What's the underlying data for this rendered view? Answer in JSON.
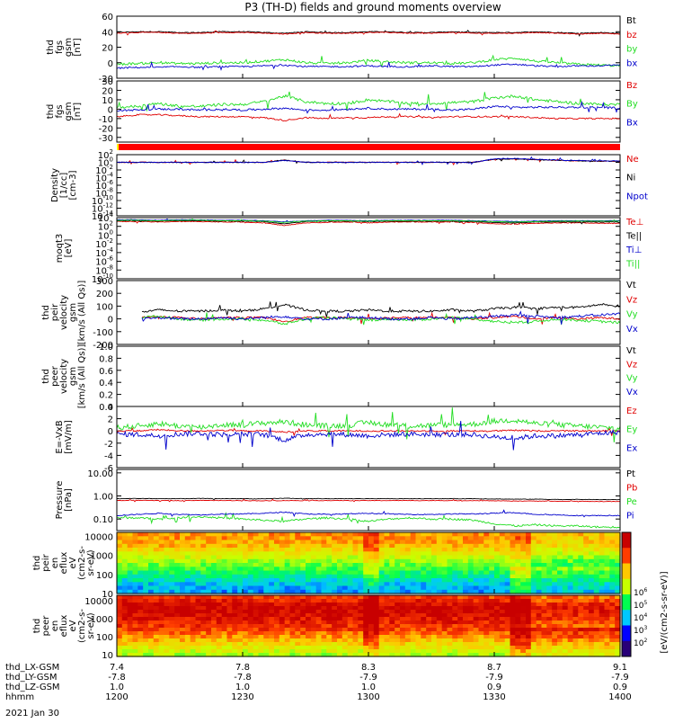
{
  "page": {
    "title": "P3 (TH-D) fields and ground moments overview",
    "date_label": "2021 Jan 30"
  },
  "colors": {
    "black": "#000000",
    "red": "#e00000",
    "green": "#22dd22",
    "blue": "#0000cc",
    "state_bar": "#ff0000",
    "state_bar_start": "#ffff00"
  },
  "x_axis": {
    "range_hhmm": [
      "12:00",
      "14:00"
    ],
    "ticks_hhmm": [
      "12:00",
      "12:30",
      "13:00",
      "13:30",
      "14:00"
    ],
    "row_labels": [
      "thd_LX-GSM",
      "thd_LY-GSM",
      "thd_LZ-GSM",
      "hhmm"
    ],
    "rows": [
      [
        "7.4",
        "7.8",
        "8.3",
        "8.7",
        "9.1"
      ],
      [
        "-7.8",
        "-7.8",
        "-7.9",
        "-7.9",
        "-7.9"
      ],
      [
        "1.0",
        "1.0",
        "1.0",
        "0.9",
        "0.9"
      ],
      [
        "1200",
        "1230",
        "1300",
        "1330",
        "1400"
      ]
    ]
  },
  "colorbar": {
    "ticks": [
      "10^2",
      "10^3",
      "10^4",
      "10^5",
      "10^6"
    ],
    "label": "[eV/(cm2-s-sr-eV)]"
  },
  "chart_data": [
    {
      "id": "fgs-gsm-total",
      "type": "line",
      "ylabel": [
        "thd",
        "fgs",
        "gsm",
        "[nT]"
      ],
      "ylim": [
        -20,
        60
      ],
      "ticks": [
        "-20",
        "0",
        "20",
        "40",
        "60"
      ],
      "log": false,
      "series": [
        {
          "name": "Bt",
          "color": "#000000",
          "base": [
            39,
            40,
            40,
            39,
            39,
            40,
            40,
            39,
            38,
            40,
            39,
            39,
            40,
            40,
            39,
            39,
            40,
            39,
            39,
            39,
            40,
            39,
            38,
            39,
            38
          ],
          "jit": 1
        },
        {
          "name": "bz",
          "color": "#e00000",
          "base": [
            38,
            39,
            39,
            38,
            38,
            39,
            39,
            38,
            37,
            39,
            38,
            38,
            39,
            39,
            38,
            38,
            39,
            38,
            38,
            38,
            39,
            38,
            37,
            38,
            37
          ],
          "jit": 1
        },
        {
          "name": "by",
          "color": "#22dd22",
          "base": [
            -2,
            -1,
            0,
            -1,
            -1,
            0,
            0,
            2,
            4,
            0,
            -1,
            0,
            3,
            1,
            0,
            0,
            -1,
            0,
            4,
            6,
            2,
            0,
            -2,
            -3,
            -4
          ],
          "jit": 3
        },
        {
          "name": "bx",
          "color": "#0000cc",
          "base": [
            -7,
            -6,
            -6,
            -5,
            -6,
            -5,
            -5,
            -4,
            -3,
            -5,
            -5,
            -5,
            -4,
            -5,
            -5,
            -4,
            -5,
            -5,
            -3,
            -2,
            -4,
            -5,
            -4,
            -4,
            -3
          ],
          "jit": 2
        }
      ]
    },
    {
      "id": "fgs-gsm-components",
      "type": "line",
      "ylabel": [
        "thd",
        "fgs",
        "gsm",
        "[nT]"
      ],
      "ylim": [
        -35,
        30
      ],
      "ticks": [
        "-30",
        "-20",
        "-10",
        "0",
        "10",
        "20",
        "30"
      ],
      "log": false,
      "series": [
        {
          "name": "Bz",
          "color": "#e00000",
          "base": [
            -8,
            -6,
            -6,
            -7,
            -8,
            -8,
            -8,
            -9,
            -12,
            -9,
            -10,
            -9,
            -9,
            -8,
            -8,
            -9,
            -8,
            -8,
            -8,
            -8,
            -9,
            -10,
            -10,
            -10,
            -10
          ],
          "jit": 1.5
        },
        {
          "name": "By",
          "color": "#22dd22",
          "base": [
            2,
            3,
            6,
            3,
            3,
            5,
            5,
            8,
            14,
            8,
            6,
            6,
            10,
            8,
            6,
            6,
            7,
            8,
            12,
            14,
            10,
            8,
            6,
            5,
            5
          ],
          "jit": 3
        },
        {
          "name": "Bx",
          "color": "#0000cc",
          "base": [
            -1,
            -1,
            0,
            0,
            -1,
            0,
            -1,
            0,
            1,
            -1,
            -1,
            0,
            1,
            0,
            0,
            0,
            -1,
            0,
            3,
            2,
            2,
            2,
            2,
            2,
            1
          ],
          "jit": 2
        }
      ]
    },
    {
      "id": "density",
      "type": "line",
      "ylabel": [
        "Density",
        "[1/cc]",
        "[cm-3]"
      ],
      "ylim": [
        -14,
        2
      ],
      "ticks": [
        "10^2",
        "10^0",
        "10^-2",
        "10^-4",
        "10^-6",
        "10^-8",
        "10^-10",
        "10^-12",
        "10^-14"
      ],
      "log": true,
      "series": [
        {
          "name": "Ne",
          "color": "#e00000",
          "base": [
            0,
            0,
            0,
            0,
            0,
            0,
            0,
            0,
            0.6,
            0,
            0,
            0,
            0,
            0,
            0,
            0,
            0,
            0,
            0.8,
            0.9,
            0.7,
            0.5,
            0.4,
            0.3,
            0.3
          ],
          "jit": 0.2
        },
        {
          "name": "Ni",
          "color": "#000000",
          "base": [
            0,
            0,
            0,
            0,
            0,
            0,
            0,
            0,
            0.6,
            0,
            0,
            0,
            0,
            0,
            0,
            0,
            0,
            0,
            0.8,
            0.9,
            0.7,
            0.5,
            0.4,
            0.3,
            0.3
          ],
          "jit": 0.2
        },
        {
          "name": "Npot",
          "color": "#0000cc",
          "base": [
            0,
            0,
            0,
            0,
            0,
            0,
            0,
            0,
            0.5,
            0,
            0,
            0,
            0,
            0,
            0,
            0,
            0,
            0,
            0.9,
            1,
            0.8,
            0.6,
            0.5,
            0.4,
            0.4
          ],
          "jit": 0.2
        }
      ]
    },
    {
      "id": "temperature",
      "type": "line",
      "ylabel": [
        "moqt3",
        "[eV]"
      ],
      "ylim": [
        -10,
        4
      ],
      "ticks": [
        "10^4",
        "10^2",
        "10^0",
        "10^-2",
        "10^-4",
        "10^-6",
        "10^-8",
        "10^-10"
      ],
      "log": true,
      "series": [
        {
          "name": "Te⊥",
          "color": "#e00000",
          "base": [
            3.1,
            3.1,
            3.0,
            3.1,
            3.1,
            3.0,
            3.0,
            2.8,
            2.2,
            2.8,
            2.9,
            3.0,
            2.8,
            3.0,
            3.0,
            3.0,
            3.0,
            2.9,
            2.6,
            2.5,
            2.7,
            2.8,
            2.8,
            2.7,
            2.7
          ],
          "jit": 0.15
        },
        {
          "name": "Te||",
          "color": "#000000",
          "base": [
            3.3,
            3.3,
            3.2,
            3.3,
            3.3,
            3.2,
            3.2,
            3.1,
            2.6,
            3.1,
            3.2,
            3.2,
            3.1,
            3.2,
            3.2,
            3.2,
            3.2,
            3.1,
            2.9,
            2.8,
            3.0,
            3.0,
            3.0,
            3.0,
            3.0
          ],
          "jit": 0.12
        },
        {
          "name": "Ti⊥",
          "color": "#0000cc",
          "base": [
            3.5,
            3.5,
            3.4,
            3.5,
            3.5,
            3.4,
            3.4,
            3.3,
            3.0,
            3.3,
            3.4,
            3.4,
            3.3,
            3.4,
            3.4,
            3.4,
            3.4,
            3.3,
            3.2,
            3.1,
            3.2,
            3.3,
            3.3,
            3.3,
            3.3
          ],
          "jit": 0.1
        },
        {
          "name": "Ti||",
          "color": "#22dd22",
          "base": [
            3.4,
            3.4,
            3.3,
            3.4,
            3.4,
            3.3,
            3.3,
            3.2,
            2.9,
            3.2,
            3.3,
            3.3,
            3.2,
            3.3,
            3.3,
            3.3,
            3.3,
            3.2,
            3.1,
            3.0,
            3.1,
            3.2,
            3.2,
            3.2,
            3.2
          ],
          "jit": 0.1
        }
      ]
    },
    {
      "id": "peir-velocity",
      "type": "line",
      "ylabel": [
        "thd",
        "peir",
        "velocity",
        "gsm",
        "[km/s (All Qs)]"
      ],
      "ylim": [
        -200,
        300
      ],
      "ticks": [
        "-200",
        "-100",
        "0",
        "100",
        "200",
        "300"
      ],
      "log": false,
      "start_frac": 0.05,
      "series": [
        {
          "name": "Vt",
          "color": "#000000",
          "base": [
            40,
            50,
            70,
            60,
            60,
            70,
            60,
            80,
            110,
            70,
            60,
            60,
            70,
            60,
            60,
            60,
            70,
            60,
            80,
            90,
            80,
            90,
            90,
            110,
            100
          ],
          "jit": 18
        },
        {
          "name": "Vz",
          "color": "#e00000",
          "base": [
            10,
            10,
            20,
            10,
            0,
            10,
            10,
            10,
            -20,
            10,
            10,
            10,
            0,
            10,
            10,
            10,
            10,
            0,
            10,
            20,
            0,
            10,
            0,
            10,
            0
          ],
          "jit": 15
        },
        {
          "name": "Vy",
          "color": "#22dd22",
          "base": [
            0,
            10,
            20,
            0,
            -10,
            0,
            0,
            -10,
            -40,
            0,
            10,
            0,
            -10,
            0,
            -10,
            0,
            10,
            0,
            -20,
            -30,
            -20,
            0,
            -10,
            -20,
            -30
          ],
          "jit": 20
        },
        {
          "name": "Vx",
          "color": "#0000cc",
          "base": [
            -10,
            0,
            10,
            0,
            0,
            10,
            0,
            10,
            20,
            0,
            0,
            10,
            10,
            0,
            0,
            10,
            0,
            10,
            20,
            30,
            20,
            10,
            20,
            30,
            40
          ],
          "jit": 20
        }
      ]
    },
    {
      "id": "peer-velocity",
      "type": "line",
      "ylabel": [
        "thd",
        "peer",
        "velocity",
        "gsm",
        "[km/s (All Qs)]"
      ],
      "ylim": [
        0,
        1
      ],
      "ticks": [
        "0.0",
        "0.2",
        "0.4",
        "0.6",
        "0.8",
        "1.0"
      ],
      "log": false,
      "series": [
        {
          "name": "Vt",
          "color": "#000000",
          "base": [],
          "jit": 0
        },
        {
          "name": "Vz",
          "color": "#e00000",
          "base": [],
          "jit": 0
        },
        {
          "name": "Vy",
          "color": "#22dd22",
          "base": [],
          "jit": 0
        },
        {
          "name": "Vx",
          "color": "#0000cc",
          "base": [],
          "jit": 0
        }
      ]
    },
    {
      "id": "e-field",
      "type": "line",
      "ylabel": [
        "E=-VxB",
        "[mV/m]"
      ],
      "ylim": [
        -6,
        4
      ],
      "ticks": [
        "-6",
        "-4",
        "-2",
        "0",
        "2",
        "4"
      ],
      "log": false,
      "series": [
        {
          "name": "Ez",
          "color": "#e00000",
          "base": [
            0,
            0,
            0.2,
            0,
            0,
            0.1,
            0,
            0,
            -0.2,
            0,
            0,
            0,
            0,
            0,
            0,
            0,
            0,
            0,
            0,
            0.1,
            0,
            0,
            0,
            0,
            0
          ],
          "jit": 0.25
        },
        {
          "name": "Ey",
          "color": "#22dd22",
          "base": [
            0.5,
            0.8,
            1.2,
            0.8,
            0.6,
            1,
            1,
            1.3,
            1.5,
            1,
            0.8,
            0.9,
            1.4,
            1,
            0.8,
            0.9,
            1,
            1.1,
            1.6,
            1.8,
            1.2,
            1,
            0.8,
            0.6,
            0.4
          ],
          "jit": 0.9
        },
        {
          "name": "Ex",
          "color": "#0000cc",
          "base": [
            -0.5,
            -0.6,
            -0.8,
            -0.5,
            -0.4,
            -0.6,
            -0.5,
            -0.6,
            -1.5,
            -0.6,
            -0.5,
            -0.6,
            -0.8,
            -0.6,
            -0.5,
            -0.6,
            -0.6,
            -0.6,
            -1,
            -1.2,
            -0.8,
            -0.8,
            -0.6,
            -0.4,
            -0.2
          ],
          "jit": 0.8
        }
      ]
    },
    {
      "id": "pressure",
      "type": "line",
      "ylabel": [
        "Pressure",
        "[nPa]"
      ],
      "ylim": [
        -1.5,
        1.15
      ],
      "ticks": [
        "10.00",
        "1.00",
        "0.10",
        "0.01"
      ],
      "tick_vals": [
        1,
        0,
        -1,
        -2
      ],
      "log": true,
      "series": [
        {
          "name": "Pt",
          "color": "#000000",
          "base": [
            -0.12,
            -0.11,
            -0.12,
            -0.12,
            -0.11,
            -0.12,
            -0.12,
            -0.13,
            -0.1,
            -0.12,
            -0.12,
            -0.12,
            -0.12,
            -0.12,
            -0.12,
            -0.12,
            -0.12,
            -0.12,
            -0.13,
            -0.14,
            -0.14,
            -0.15,
            -0.15,
            -0.16,
            -0.16
          ],
          "jit": 0.02
        },
        {
          "name": "Pb",
          "color": "#e00000",
          "base": [
            -0.2,
            -0.19,
            -0.2,
            -0.2,
            -0.19,
            -0.2,
            -0.2,
            -0.21,
            -0.2,
            -0.2,
            -0.2,
            -0.2,
            -0.2,
            -0.2,
            -0.2,
            -0.2,
            -0.2,
            -0.2,
            -0.21,
            -0.22,
            -0.22,
            -0.23,
            -0.23,
            -0.24,
            -0.24
          ],
          "jit": 0.02
        },
        {
          "name": "Pe",
          "color": "#22dd22",
          "base": [
            -0.95,
            -0.95,
            -1.0,
            -0.95,
            -0.9,
            -0.95,
            -1,
            -1.05,
            -1.1,
            -1,
            -0.95,
            -1,
            -1.1,
            -1,
            -0.95,
            -1,
            -1,
            -1.05,
            -1.2,
            -1.3,
            -1.25,
            -1.3,
            -1.3,
            -1.35,
            -1.35
          ],
          "jit": 0.08
        },
        {
          "name": "Pi",
          "color": "#0000cc",
          "base": [
            -0.85,
            -0.8,
            -0.75,
            -0.8,
            -0.82,
            -0.78,
            -0.78,
            -0.75,
            -0.7,
            -0.78,
            -0.8,
            -0.78,
            -0.75,
            -0.78,
            -0.8,
            -0.8,
            -0.78,
            -0.78,
            -0.75,
            -0.72,
            -0.8,
            -0.82,
            -0.85,
            -0.85,
            -0.85
          ],
          "jit": 0.04
        }
      ]
    },
    {
      "id": "peir-en-eflux",
      "type": "heatmap",
      "ylabel": [
        "thd",
        "peir",
        "en",
        "eflux",
        "eV",
        "(cm2-s-",
        "sr-eV)"
      ],
      "ylim": [
        1,
        4.2
      ],
      "ticks": [
        "10",
        "100",
        "1000",
        "10000"
      ],
      "tick_vals": [
        1,
        2,
        3,
        4
      ],
      "log": true,
      "rows_logE": [
        4.1,
        3.9,
        3.7,
        3.5,
        3.3,
        3.1,
        2.9,
        2.7,
        2.5,
        2.3,
        2.1,
        1.9,
        1.7,
        1.5,
        1.3,
        1.1
      ],
      "cols": 96,
      "profile": [
        5.6,
        5.6,
        5.5,
        5.4,
        5.2,
        5.0,
        4.8,
        4.6,
        4.4,
        4.2,
        4.0,
        3.8,
        3.6,
        3.4,
        3.3,
        3.2
      ]
    },
    {
      "id": "peer-en-eflux",
      "type": "heatmap",
      "ylabel": [
        "thd",
        "peer",
        "en",
        "eflux",
        "eV",
        "(cm2-s-",
        "sr-eV)"
      ],
      "ylim": [
        0.9,
        4.3
      ],
      "ticks": [
        "10",
        "100",
        "1000",
        "10000"
      ],
      "tick_vals": [
        1,
        2,
        3,
        4
      ],
      "log": true,
      "rows_logE": [
        4.2,
        4.0,
        3.8,
        3.6,
        3.4,
        3.2,
        3.0,
        2.8,
        2.6,
        2.4,
        2.2,
        2.0,
        1.8,
        1.6,
        1.4,
        1.2,
        1.0
      ],
      "cols": 96,
      "profile": [
        6.0,
        6.2,
        6.4,
        6.5,
        6.5,
        6.4,
        6.3,
        6.2,
        6.1,
        6.0,
        5.8,
        5.6,
        5.4,
        5.2,
        5.0,
        4.8,
        4.6
      ]
    }
  ]
}
